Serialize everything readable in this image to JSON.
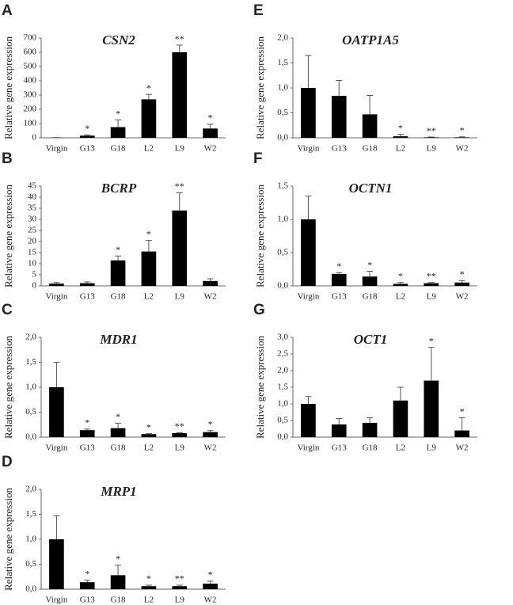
{
  "chart_data": [
    {
      "type": "bar",
      "label": "A",
      "title": "CSN2",
      "ylabel": "Relative gene expression",
      "categories": [
        "Virgin",
        "G13",
        "G18",
        "L2",
        "L9",
        "W2"
      ],
      "values": [
        1,
        15,
        75,
        270,
        600,
        65
      ],
      "errors": [
        1,
        5,
        50,
        35,
        50,
        30
      ],
      "annotations": [
        null,
        "*",
        "*",
        "*",
        "**",
        "*"
      ],
      "color": "#000000",
      "ylim": [
        0,
        700
      ],
      "yticks": [
        0,
        100,
        200,
        300,
        400,
        500,
        600,
        700
      ]
    },
    {
      "type": "bar",
      "label": "B",
      "title": "BCRP",
      "ylabel": "Relative gene expression",
      "categories": [
        "Virgin",
        "G13",
        "G18",
        "L2",
        "L9",
        "W2"
      ],
      "values": [
        1,
        1.2,
        11.5,
        15.5,
        34,
        2.2
      ],
      "errors": [
        0.5,
        0.6,
        2,
        5,
        8,
        1
      ],
      "annotations": [
        null,
        null,
        "*",
        "*",
        "**",
        null
      ],
      "color": "#000000",
      "ylim": [
        0,
        45
      ],
      "yticks": [
        0,
        5,
        10,
        15,
        20,
        25,
        30,
        35,
        40,
        45
      ]
    },
    {
      "type": "bar",
      "label": "C",
      "title": "MDR1",
      "ylabel": "Relative gene expression",
      "categories": [
        "Virgin",
        "G13",
        "G18",
        "L2",
        "L9",
        "W2"
      ],
      "values": [
        1.0,
        0.14,
        0.18,
        0.06,
        0.08,
        0.1
      ],
      "errors": [
        0.5,
        0.02,
        0.1,
        0.01,
        0.01,
        0.03
      ],
      "annotations": [
        null,
        "*",
        "*",
        "*",
        "**",
        "*"
      ],
      "color": "#000000",
      "ylim": [
        0,
        2
      ],
      "yticks": [
        {
          "value": 0,
          "label": "0,0"
        },
        {
          "value": 0.5,
          "label": "0,5"
        },
        {
          "value": 1,
          "label": "1,0"
        },
        {
          "value": 1.5,
          "label": "1,5"
        },
        {
          "value": 2,
          "label": "2,0"
        }
      ]
    },
    {
      "type": "bar",
      "label": "D",
      "title": "MRP1",
      "ylabel": "Relative gene expression",
      "categories": [
        "Virgin",
        "G13",
        "G18",
        "L2",
        "L9",
        "W2"
      ],
      "values": [
        1.0,
        0.14,
        0.28,
        0.06,
        0.06,
        0.11
      ],
      "errors": [
        0.47,
        0.04,
        0.2,
        0.02,
        0.02,
        0.05
      ],
      "annotations": [
        null,
        "*",
        "*",
        "*",
        "**",
        "*"
      ],
      "color": "#000000",
      "ylim": [
        0,
        2
      ],
      "yticks": [
        {
          "value": 0,
          "label": "0,0"
        },
        {
          "value": 0.5,
          "label": "0,5"
        },
        {
          "value": 1,
          "label": "1,0"
        },
        {
          "value": 1.5,
          "label": "1,5"
        },
        {
          "value": 2,
          "label": "2,0"
        }
      ]
    },
    {
      "type": "bar",
      "label": "E",
      "title": "OATP1A5",
      "ylabel": "Relative gene expression",
      "categories": [
        "Virgin",
        "G13",
        "G18",
        "L2",
        "L9",
        "W2"
      ],
      "values": [
        1.0,
        0.84,
        0.47,
        0.03,
        0.01,
        0.01
      ],
      "errors": [
        0.65,
        0.31,
        0.38,
        0.04,
        0.005,
        0.01
      ],
      "annotations": [
        null,
        null,
        null,
        "*",
        "**",
        "*"
      ],
      "color": "#000000",
      "ylim": [
        0,
        2
      ],
      "yticks": [
        {
          "value": 0,
          "label": "0,0"
        },
        {
          "value": 0.5,
          "label": "0,5"
        },
        {
          "value": 1,
          "label": "1,0"
        },
        {
          "value": 1.5,
          "label": "1,5"
        },
        {
          "value": 2,
          "label": "2,0"
        }
      ]
    },
    {
      "type": "bar",
      "label": "F",
      "title": "OCTN1",
      "ylabel": "Relative gene expression",
      "categories": [
        "Virgin",
        "G13",
        "G18",
        "L2",
        "L9",
        "W2"
      ],
      "values": [
        1.0,
        0.18,
        0.14,
        0.03,
        0.04,
        0.05
      ],
      "errors": [
        0.35,
        0.02,
        0.08,
        0.02,
        0.01,
        0.03
      ],
      "annotations": [
        null,
        "*",
        "*",
        "*",
        "**",
        "*"
      ],
      "color": "#000000",
      "ylim": [
        0,
        1.5
      ],
      "yticks": [
        {
          "value": 0,
          "label": "0,0"
        },
        {
          "value": 0.5,
          "label": "0,5"
        },
        {
          "value": 1,
          "label": "1,0"
        },
        {
          "value": 1.5,
          "label": "1,5"
        }
      ]
    },
    {
      "type": "bar",
      "label": "G",
      "title": "OCT1",
      "ylabel": "Relative gene expression",
      "categories": [
        "Virgin",
        "G13",
        "G18",
        "L2",
        "L9",
        "W2"
      ],
      "values": [
        1.0,
        0.38,
        0.43,
        1.1,
        1.7,
        0.2
      ],
      "errors": [
        0.22,
        0.18,
        0.15,
        0.4,
        1.0,
        0.38
      ],
      "annotations": [
        null,
        null,
        null,
        null,
        "*",
        "*"
      ],
      "color": "#000000",
      "ylim": [
        0,
        3
      ],
      "yticks": [
        {
          "value": 0,
          "label": "0,0"
        },
        {
          "value": 0.5,
          "label": "0,5"
        },
        {
          "value": 1,
          "label": "1,0"
        },
        {
          "value": 1.5,
          "label": "1,5"
        },
        {
          "value": 2,
          "label": "2,0"
        },
        {
          "value": 2.5,
          "label": "2,5"
        },
        {
          "value": 3,
          "label": "3,0"
        }
      ]
    }
  ]
}
